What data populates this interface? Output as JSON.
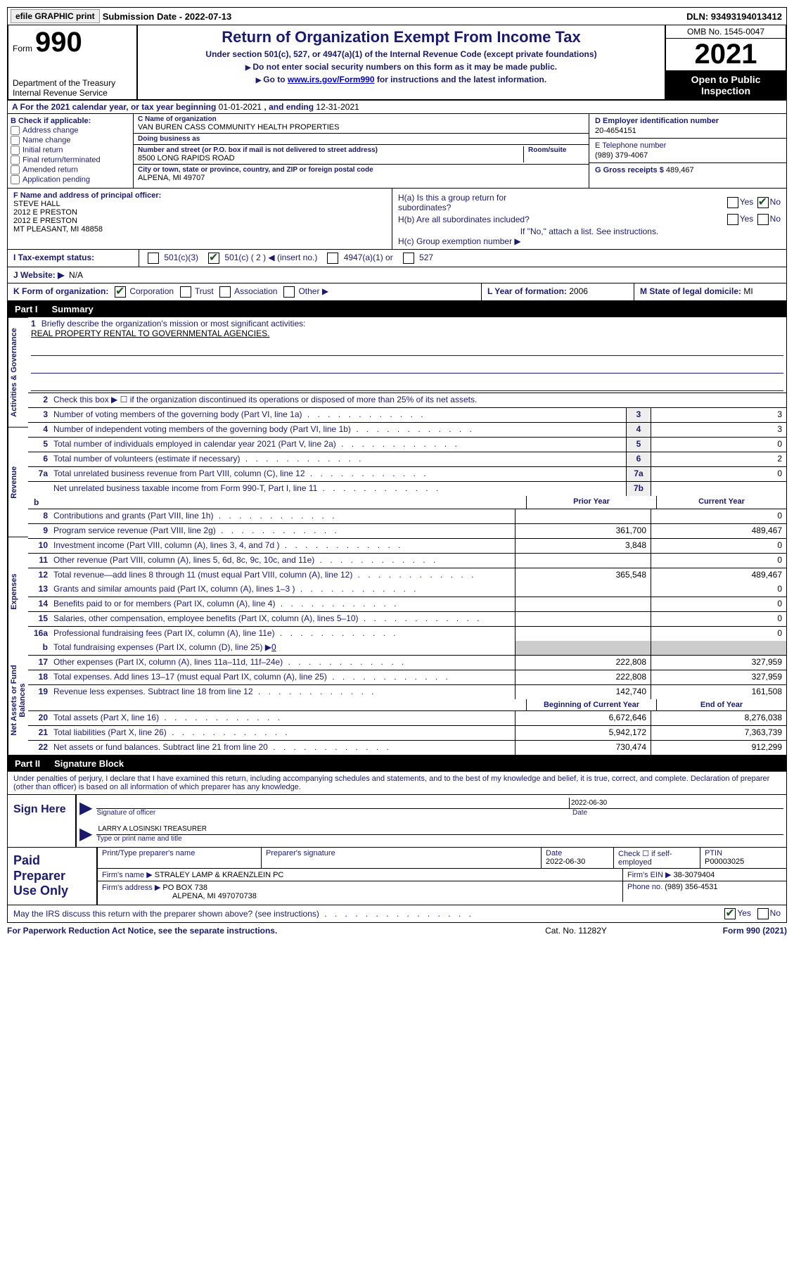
{
  "topbar": {
    "efile_btn": "efile GRAPHIC print",
    "submission_date": "Submission Date - 2022-07-13",
    "dln": "DLN: 93493194013412"
  },
  "header": {
    "form_word": "Form",
    "form_num": "990",
    "dept": "Department of the Treasury\nInternal Revenue Service",
    "title": "Return of Organization Exempt From Income Tax",
    "subtitle": "Under section 501(c), 527, or 4947(a)(1) of the Internal Revenue Code (except private foundations)",
    "note1": "Do not enter social security numbers on this form as it may be made public.",
    "note2_pre": "Go to ",
    "note2_link": "www.irs.gov/Form990",
    "note2_post": " for instructions and the latest information.",
    "omb": "OMB No. 1545-0047",
    "year": "2021",
    "open": "Open to Public Inspection"
  },
  "row_a": {
    "label": "A For the 2021 calendar year, or tax year beginning ",
    "begin": "01-01-2021",
    "mid": "  , and ending ",
    "end": "12-31-2021"
  },
  "col_b": {
    "head": "B Check if applicable:",
    "opts": [
      "Address change",
      "Name change",
      "Initial return",
      "Final return/terminated",
      "Amended return",
      "Application pending"
    ]
  },
  "col_c": {
    "name_label": "C Name of organization",
    "name": "VAN BUREN CASS COMMUNITY HEALTH PROPERTIES",
    "dba_label": "Doing business as",
    "dba": "",
    "addr_label": "Number and street (or P.O. box if mail is not delivered to street address)",
    "room_label": "Room/suite",
    "addr": "8500 LONG RAPIDS ROAD",
    "city_label": "City or town, state or province, country, and ZIP or foreign postal code",
    "city": "ALPENA, MI  49707"
  },
  "col_d": {
    "ein_label": "D Employer identification number",
    "ein": "20-4654151",
    "tel_label": "E Telephone number",
    "tel": "(989) 379-4067",
    "gross_label": "G Gross receipts $ ",
    "gross": "489,467"
  },
  "col_f": {
    "label": "F  Name and address of principal officer:",
    "line1": "STEVE HALL",
    "line2": "2012 E PRESTON",
    "line3": "2012 E PRESTON",
    "line4": "MT PLEASANT, MI  48858"
  },
  "col_h": {
    "ha1": "H(a)  Is this a group return for",
    "ha2": "subordinates?",
    "hb1": "H(b)  Are all subordinates included?",
    "note": "If \"No,\" attach a list. See instructions.",
    "hc": "H(c)  Group exemption number ▶"
  },
  "row_i": {
    "label": "I  Tax-exempt status:",
    "opt1": "501(c)(3)",
    "opt2": "501(c) ( 2 ) ◀ (insert no.)",
    "opt3": "4947(a)(1) or",
    "opt4": "527"
  },
  "row_j": {
    "label": "J  Website: ▶",
    "val": "N/A"
  },
  "row_k": {
    "label": "K Form of organization:",
    "opts": [
      "Corporation",
      "Trust",
      "Association",
      "Other ▶"
    ],
    "checked": 0,
    "l_label": "L Year of formation: ",
    "l_val": "2006",
    "m_label": "M State of legal domicile: ",
    "m_val": "MI"
  },
  "part1": {
    "label": "Part I",
    "title": "Summary"
  },
  "summary": {
    "mission_q": "Briefly describe the organization's mission or most significant activities:",
    "mission": "REAL PROPERTY RENTAL TO GOVERNMENTAL AGENCIES.",
    "line2": "Check this box ▶ ☐  if the organization discontinued its operations or disposed of more than 25% of its net assets.",
    "rows_single": [
      {
        "n": "3",
        "t": "Number of voting members of the governing body (Part VI, line 1a)",
        "box": "3",
        "v": "3"
      },
      {
        "n": "4",
        "t": "Number of independent voting members of the governing body (Part VI, line 1b)",
        "box": "4",
        "v": "3"
      },
      {
        "n": "5",
        "t": "Total number of individuals employed in calendar year 2021 (Part V, line 2a)",
        "box": "5",
        "v": "0"
      },
      {
        "n": "6",
        "t": "Total number of volunteers (estimate if necessary)",
        "box": "6",
        "v": "2"
      },
      {
        "n": "7a",
        "t": "Total unrelated business revenue from Part VIII, column (C), line 12",
        "box": "7a",
        "v": "0"
      },
      {
        "n": "",
        "t": "Net unrelated business taxable income from Form 990-T, Part I, line 11",
        "box": "7b",
        "v": ""
      }
    ],
    "prior_hdr": "Prior Year",
    "curr_hdr": "Current Year",
    "rev": [
      {
        "n": "8",
        "t": "Contributions and grants (Part VIII, line 1h)",
        "p": "",
        "c": "0"
      },
      {
        "n": "9",
        "t": "Program service revenue (Part VIII, line 2g)",
        "p": "361,700",
        "c": "489,467"
      },
      {
        "n": "10",
        "t": "Investment income (Part VIII, column (A), lines 3, 4, and 7d )",
        "p": "3,848",
        "c": "0"
      },
      {
        "n": "11",
        "t": "Other revenue (Part VIII, column (A), lines 5, 6d, 8c, 9c, 10c, and 11e)",
        "p": "",
        "c": "0"
      },
      {
        "n": "12",
        "t": "Total revenue—add lines 8 through 11 (must equal Part VIII, column (A), line 12)",
        "p": "365,548",
        "c": "489,467"
      }
    ],
    "exp": [
      {
        "n": "13",
        "t": "Grants and similar amounts paid (Part IX, column (A), lines 1–3 )",
        "p": "",
        "c": "0"
      },
      {
        "n": "14",
        "t": "Benefits paid to or for members (Part IX, column (A), line 4)",
        "p": "",
        "c": "0"
      },
      {
        "n": "15",
        "t": "Salaries, other compensation, employee benefits (Part IX, column (A), lines 5–10)",
        "p": "",
        "c": "0"
      },
      {
        "n": "16a",
        "t": "Professional fundraising fees (Part IX, column (A), line 11e)",
        "p": "",
        "c": "0"
      }
    ],
    "line_b": "Total fundraising expenses (Part IX, column (D), line 25) ▶",
    "line_b_val": "0",
    "exp2": [
      {
        "n": "17",
        "t": "Other expenses (Part IX, column (A), lines 11a–11d, 11f–24e)",
        "p": "222,808",
        "c": "327,959"
      },
      {
        "n": "18",
        "t": "Total expenses. Add lines 13–17 (must equal Part IX, column (A), line 25)",
        "p": "222,808",
        "c": "327,959"
      },
      {
        "n": "19",
        "t": "Revenue less expenses. Subtract line 18 from line 12",
        "p": "142,740",
        "c": "161,508"
      }
    ],
    "boy_hdr": "Beginning of Current Year",
    "eoy_hdr": "End of Year",
    "net": [
      {
        "n": "20",
        "t": "Total assets (Part X, line 16)",
        "p": "6,672,646",
        "c": "8,276,038"
      },
      {
        "n": "21",
        "t": "Total liabilities (Part X, line 26)",
        "p": "5,942,172",
        "c": "7,363,739"
      },
      {
        "n": "22",
        "t": "Net assets or fund balances. Subtract line 21 from line 20",
        "p": "730,474",
        "c": "912,299"
      }
    ]
  },
  "vtabs": {
    "gov": "Activities & Governance",
    "rev": "Revenue",
    "exp": "Expenses",
    "net": "Net Assets or Fund Balances"
  },
  "part2": {
    "label": "Part II",
    "title": "Signature Block"
  },
  "sig": {
    "intro": "Under penalties of perjury, I declare that I have examined this return, including accompanying schedules and statements, and to the best of my knowledge and belief, it is true, correct, and complete. Declaration of preparer (other than officer) is based on all information of which preparer has any knowledge.",
    "sign_here": "Sign Here",
    "sig_officer": "Signature of officer",
    "date": "Date",
    "date_val": "2022-06-30",
    "name": "LARRY A LOSINSKI  TREASURER",
    "name_label": "Type or print name and title"
  },
  "paid": {
    "label": "Paid Preparer Use Only",
    "row1": {
      "prep_name_l": "Print/Type preparer's name",
      "prep_sig_l": "Preparer's signature",
      "date_l": "Date",
      "date_v": "2022-06-30",
      "check_l": "Check ☐ if self-employed",
      "ptin_l": "PTIN",
      "ptin_v": "P00003025"
    },
    "row2": {
      "firm_l": "Firm's name      ▶",
      "firm_v": "STRALEY LAMP & KRAENZLEIN PC",
      "ein_l": "Firm's EIN ▶",
      "ein_v": "38-3079404"
    },
    "row3": {
      "addr_l": "Firm's address ▶",
      "addr_v1": "PO BOX 738",
      "addr_v2": "ALPENA, MI  497070738",
      "phone_l": "Phone no. ",
      "phone_v": "(989) 356-4531"
    }
  },
  "may_irs": "May the IRS discuss this return with the preparer shown above? (see instructions)",
  "footer": {
    "l": "For Paperwork Reduction Act Notice, see the separate instructions.",
    "m": "Cat. No. 11282Y",
    "r": "Form 990 (2021)"
  }
}
